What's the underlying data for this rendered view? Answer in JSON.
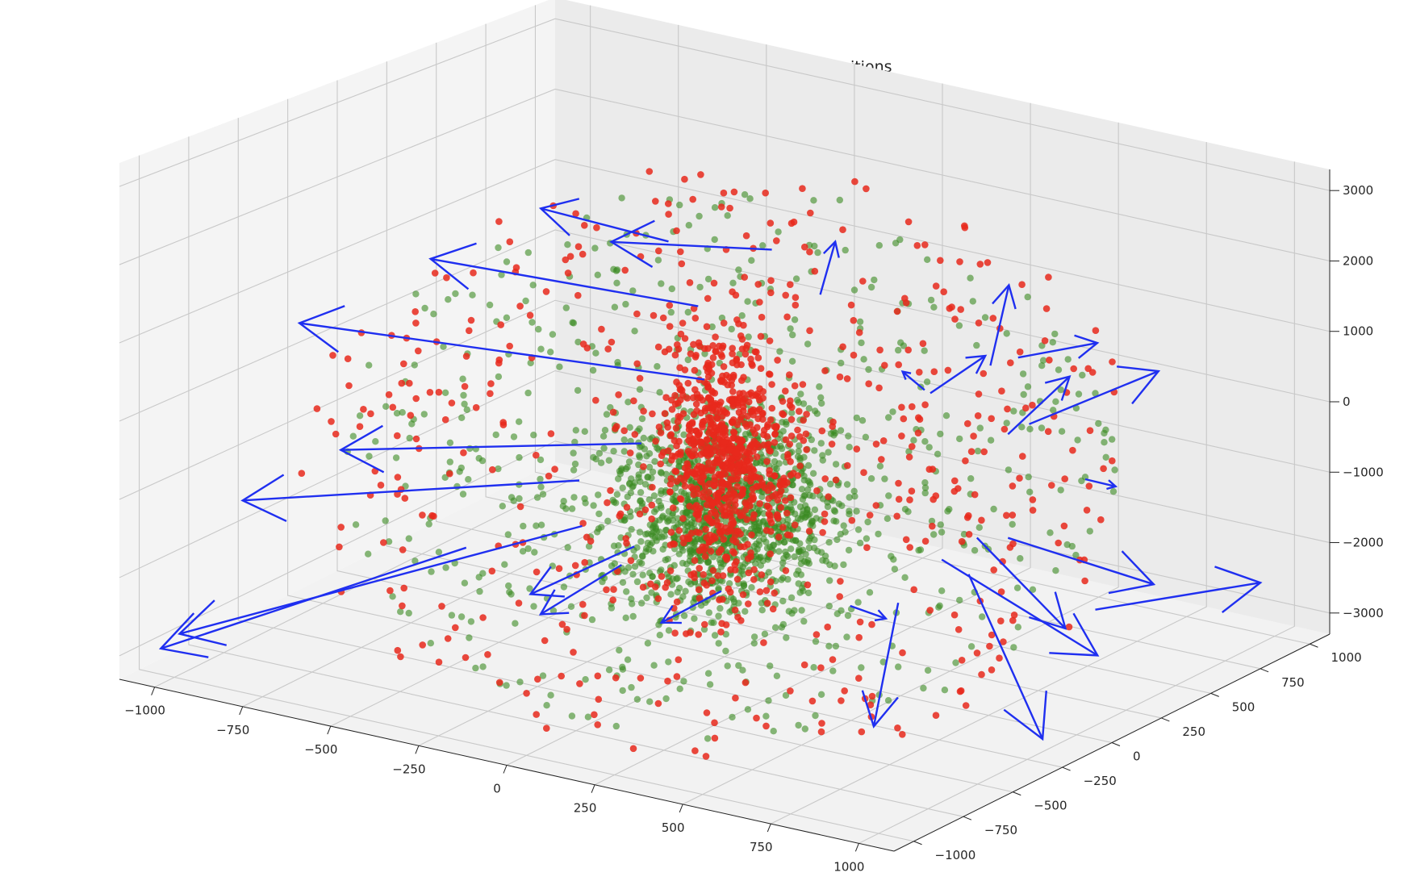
{
  "chart_data": {
    "type": "scatter",
    "projection": "3d",
    "title": "Initial Particle Positions w. Next Particle Positions",
    "grid": true,
    "axes": {
      "x": {
        "range": [
          -1100,
          1100
        ],
        "ticks": [
          -1000,
          -750,
          -500,
          -250,
          0,
          250,
          500,
          750,
          1000
        ],
        "tick_labels": [
          "−1000",
          "−750",
          "−500",
          "−250",
          "0",
          "250",
          "500",
          "750",
          "1000"
        ]
      },
      "y": {
        "range": [
          -1100,
          1100
        ],
        "ticks": [
          -1000,
          -750,
          -500,
          -250,
          0,
          250,
          500,
          750,
          1000
        ],
        "tick_labels": [
          "−1000",
          "−750",
          "−500",
          "−250",
          "0",
          "250",
          "500",
          "750",
          "1000"
        ]
      },
      "z": {
        "range": [
          -3300,
          3300
        ],
        "ticks": [
          -3000,
          -2000,
          -1000,
          0,
          1000,
          2000,
          3000
        ],
        "tick_labels": [
          "−3000",
          "−2000",
          "−1000",
          "0",
          "1000",
          "2000",
          "3000"
        ]
      }
    },
    "series": [
      {
        "kind": "scatter",
        "color": "#3a8a22",
        "alpha": 0.6,
        "description": "initial particle positions, dense core near origin with sparse halo"
      },
      {
        "kind": "scatter",
        "color": "#e8291c",
        "alpha": 0.85,
        "description": "next particle positions, dense column near origin with sparse halo"
      },
      {
        "kind": "quiver",
        "color": "#1f2ff0",
        "vectors": [
          {
            "x": 620,
            "y": 240,
            "z": 1000,
            "u": 120,
            "v": -120,
            "w": 1350
          },
          {
            "x": -40,
            "y": 310,
            "z": 1800,
            "u": -310,
            "v": -260,
            "w": 60
          },
          {
            "x": -300,
            "y": 250,
            "z": 1700,
            "u": -250,
            "v": -200,
            "w": 400
          },
          {
            "x": -120,
            "y": 80,
            "z": 1200,
            "u": -580,
            "v": -320,
            "w": 380
          },
          {
            "x": -80,
            "y": 40,
            "z": 300,
            "u": -880,
            "v": -480,
            "w": 380
          },
          {
            "x": -180,
            "y": -100,
            "z": -500,
            "u": -640,
            "v": -380,
            "w": -300
          },
          {
            "x": -300,
            "y": -200,
            "z": -1000,
            "u": -720,
            "v": -420,
            "w": -500
          },
          {
            "x": -230,
            "y": -310,
            "z": -1400,
            "u": -840,
            "v": -540,
            "w": -1600
          },
          {
            "x": -520,
            "y": -380,
            "z": -1900,
            "u": -620,
            "v": -440,
            "w": -1400
          },
          {
            "x": -200,
            "y": -100,
            "z": -1900,
            "u": -160,
            "v": -240,
            "w": -500
          },
          {
            "x": -180,
            "y": -200,
            "z": -2000,
            "u": -140,
            "v": -160,
            "w": -600
          },
          {
            "x": 420,
            "y": 130,
            "z": -2300,
            "u": 60,
            "v": -230,
            "w": -1300
          },
          {
            "x": 620,
            "y": 130,
            "z": -1700,
            "u": 300,
            "v": -160,
            "w": -1700
          },
          {
            "x": 600,
            "y": 30,
            "z": -1400,
            "u": 420,
            "v": 40,
            "w": -900
          },
          {
            "x": 700,
            "y": 30,
            "z": -1000,
            "u": 330,
            "v": -140,
            "w": -700
          },
          {
            "x": 760,
            "y": 80,
            "z": -1000,
            "u": 380,
            "v": 60,
            "w": -300
          },
          {
            "x": 980,
            "y": 130,
            "z": -1800,
            "u": 120,
            "v": 620,
            "w": -300
          },
          {
            "x": 760,
            "y": 80,
            "z": 400,
            "u": 220,
            "v": -80,
            "w": 1100
          },
          {
            "x": 800,
            "y": 60,
            "z": 1500,
            "u": 180,
            "v": 80,
            "w": 300
          },
          {
            "x": 820,
            "y": 80,
            "z": 600,
            "u": 300,
            "v": 120,
            "w": 900
          },
          {
            "x": 940,
            "y": 150,
            "z": -100,
            "u": 120,
            "v": -60,
            "w": 100
          },
          {
            "x": 540,
            "y": 50,
            "z": 800,
            "u": -40,
            "v": -40,
            "w": 250
          },
          {
            "x": 120,
            "y": -230,
            "z": -2000,
            "u": -80,
            "v": -160,
            "w": -300
          },
          {
            "x": 430,
            "y": -130,
            "z": -2000,
            "u": 90,
            "v": 20,
            "w": -100
          },
          {
            "x": 500,
            "y": 150,
            "z": 600,
            "u": 100,
            "v": 100,
            "w": 500
          },
          {
            "x": 120,
            "y": 270,
            "z": 1400,
            "u": 20,
            "v": 40,
            "w": 700
          }
        ]
      }
    ]
  }
}
